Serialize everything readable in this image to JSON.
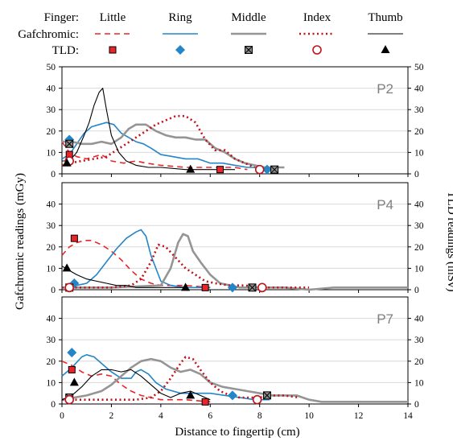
{
  "colors": {
    "little": "#e8262a",
    "ring": "#2485c8",
    "middle": "#959595",
    "index": "#c0131b",
    "thumb": "#000000",
    "panel_title": "#7f7f7f",
    "grid": "#d9d9d9"
  },
  "chart_data": {
    "type": "line",
    "legend": {
      "row_labels": [
        "Finger:",
        "Gafchromic:",
        "TLD:"
      ],
      "fingers": [
        "Little",
        "Ring",
        "Middle",
        "Index",
        "Thumb"
      ],
      "placement": "top"
    },
    "xlabel": "Distance to fingertip (cm)",
    "ylabel_left": "Gafchromic readings (mGy)",
    "ylabel_right": "TLD readings (mSv)",
    "xlim": [
      0,
      14
    ],
    "x_ticks": [
      0,
      2,
      4,
      6,
      8,
      10,
      12,
      14
    ],
    "ylim_left": [
      0,
      50
    ],
    "ylim_right": [
      0,
      50
    ],
    "y_ticks": [
      0,
      10,
      20,
      30,
      40,
      50
    ],
    "grid": true,
    "panels": [
      {
        "title": "P2",
        "series": [
          {
            "name": "Little",
            "x": [
              0,
              0.3,
              0.6,
              1.0,
              1.6,
              2.0,
              2.5,
              3.0,
              3.4,
              4.0,
              5.0,
              6.0,
              7.0,
              7.5
            ],
            "y": [
              15,
              10,
              8,
              7,
              9,
              6,
              5,
              6,
              5,
              4,
              3,
              3,
              3,
              2
            ]
          },
          {
            "name": "Ring",
            "x": [
              0,
              0.3,
              0.6,
              0.9,
              1.2,
              1.5,
              1.8,
              2.1,
              2.4,
              2.7,
              3.0,
              3.3,
              3.6,
              4.0,
              4.5,
              5.0,
              5.5,
              6.0,
              6.5,
              7.0,
              7.5,
              8.0,
              8.5
            ],
            "y": [
              7,
              9,
              14,
              19,
              22,
              23,
              24,
              23,
              19,
              17,
              15,
              14,
              12,
              9,
              8,
              7,
              7,
              5,
              5,
              4,
              3,
              3,
              3
            ]
          },
          {
            "name": "Middle",
            "x": [
              0,
              0.4,
              0.8,
              1.2,
              1.6,
              2.0,
              2.4,
              2.7,
              3.0,
              3.4,
              3.8,
              4.2,
              4.6,
              5.0,
              5.4,
              5.8,
              6.2,
              6.6,
              7.0,
              7.4,
              7.8,
              8.2,
              8.6,
              9.0
            ],
            "y": [
              15,
              15,
              14,
              14,
              15,
              14,
              17,
              21,
              23,
              23,
              20,
              18,
              17,
              17,
              16,
              16,
              12,
              10,
              7,
              5,
              4,
              3,
              3,
              3
            ]
          },
          {
            "name": "Index",
            "x": [
              0,
              0.3,
              0.8,
              1.3,
              1.8,
              2.2,
              2.6,
              3.0,
              3.4,
              3.8,
              4.2,
              4.6,
              5.0,
              5.4,
              5.8,
              6.2,
              6.6,
              7.0,
              7.4,
              7.8
            ],
            "y": [
              4,
              5,
              6,
              7,
              8,
              11,
              14,
              17,
              20,
              23,
              25,
              27,
              27,
              24,
              16,
              11,
              11,
              7,
              5,
              3
            ]
          },
          {
            "name": "Thumb",
            "x": [
              0,
              0.3,
              0.6,
              0.9,
              1.1,
              1.3,
              1.5,
              1.65,
              1.8,
              2.0,
              2.3,
              2.6,
              3.0,
              3.5,
              4.0,
              5.0,
              6.0,
              7.0
            ],
            "y": [
              6,
              6,
              10,
              18,
              24,
              32,
              38,
              40,
              30,
              18,
              10,
              6,
              4,
              3,
              3,
              2,
              2,
              2
            ]
          }
        ],
        "tld": [
          {
            "name": "Little",
            "x": [
              0.3,
              6.4
            ],
            "y": [
              9,
              2
            ]
          },
          {
            "name": "Ring",
            "x": [
              0.3,
              8.3
            ],
            "y": [
              16,
              2
            ]
          },
          {
            "name": "Middle",
            "x": [
              0.3,
              8.6
            ],
            "y": [
              14,
              2
            ]
          },
          {
            "name": "Index",
            "x": [
              0.3,
              8.0
            ],
            "y": [
              6,
              2
            ]
          },
          {
            "name": "Thumb",
            "x": [
              0.2,
              5.2
            ],
            "y": [
              5,
              2
            ]
          }
        ]
      },
      {
        "title": "P4",
        "series": [
          {
            "name": "Little",
            "x": [
              0,
              0.3,
              0.6,
              0.9,
              1.2,
              1.6,
              2.0,
              2.4,
              2.8,
              3.2,
              3.6,
              4.0,
              5.0,
              6.0
            ],
            "y": [
              16,
              20,
              22,
              23,
              23,
              21,
              18,
              14,
              9,
              5,
              3,
              2,
              2,
              1
            ]
          },
          {
            "name": "Ring",
            "x": [
              0,
              0.6,
              1.0,
              1.4,
              1.8,
              2.2,
              2.6,
              3.0,
              3.2,
              3.4,
              3.6,
              4.0,
              4.4,
              5.0,
              5.6,
              6.0
            ],
            "y": [
              1,
              2,
              3,
              7,
              13,
              19,
              24,
              27,
              28,
              25,
              16,
              4,
              2,
              1,
              1,
              1
            ]
          },
          {
            "name": "Middle",
            "x": [
              0,
              2.0,
              4.0,
              4.4,
              4.7,
              4.9,
              5.1,
              5.3,
              5.6,
              6.0,
              6.4,
              6.8,
              7.2,
              7.6,
              8.0,
              8.6,
              9.0,
              10.0,
              11.0,
              12.0,
              13.0,
              14.0
            ],
            "y": [
              1,
              1,
              2,
              10,
              22,
              26,
              25,
              18,
              13,
              7,
              3,
              2,
              1,
              1,
              1,
              1,
              1,
              0,
              1,
              1,
              1,
              1
            ]
          },
          {
            "name": "Index",
            "x": [
              0,
              1.0,
              2.0,
              2.8,
              3.2,
              3.6,
              3.9,
              4.2,
              4.6,
              5.0,
              5.4,
              5.8,
              6.2,
              6.8,
              7.4,
              8.0,
              9.0,
              10.0
            ],
            "y": [
              1,
              1,
              1,
              2,
              5,
              13,
              21,
              20,
              15,
              10,
              7,
              4,
              3,
              2,
              2,
              1,
              1,
              1
            ]
          },
          {
            "name": "Thumb",
            "x": [
              0,
              0.3,
              0.6,
              1.0,
              1.4,
              1.8,
              2.2,
              2.6,
              3.0,
              4.0,
              5.0
            ],
            "y": [
              11,
              9,
              7,
              5,
              4,
              3,
              2,
              2,
              1,
              1,
              1
            ]
          }
        ],
        "tld": [
          {
            "name": "Little",
            "x": [
              0.5,
              5.8
            ],
            "y": [
              24,
              1
            ]
          },
          {
            "name": "Ring",
            "x": [
              0.5,
              6.9
            ],
            "y": [
              3,
              1
            ]
          },
          {
            "name": "Middle",
            "x": [
              0.3,
              7.7
            ],
            "y": [
              1,
              1
            ]
          },
          {
            "name": "Index",
            "x": [
              0.3,
              8.1
            ],
            "y": [
              1,
              1
            ]
          },
          {
            "name": "Thumb",
            "x": [
              0.2,
              5.0
            ],
            "y": [
              10,
              1
            ]
          }
        ]
      },
      {
        "title": "P7",
        "series": [
          {
            "name": "Little",
            "x": [
              0,
              0.4,
              0.8,
              1.2,
              1.6,
              2.0,
              2.4,
              2.8,
              3.2,
              3.6,
              4.0,
              5.0,
              6.0
            ],
            "y": [
              20,
              18,
              15,
              13,
              14,
              13,
              9,
              6,
              4,
              3,
              2,
              2,
              1
            ]
          },
          {
            "name": "Ring",
            "x": [
              0,
              0.4,
              0.8,
              1.0,
              1.3,
              1.6,
              2.0,
              2.4,
              2.8,
              3.0,
              3.2,
              3.5,
              3.8,
              4.2,
              4.8,
              5.4,
              6.0,
              6.6,
              7.2,
              7.8,
              8.4
            ],
            "y": [
              13,
              17,
              22,
              23,
              22,
              19,
              15,
              12,
              12,
              15,
              16,
              14,
              10,
              7,
              5,
              5,
              5,
              4,
              3,
              2,
              2
            ]
          },
          {
            "name": "Middle",
            "x": [
              0,
              1.0,
              1.6,
              2.0,
              2.4,
              2.8,
              3.2,
              3.6,
              4.0,
              4.4,
              4.8,
              5.2,
              5.6,
              6.0,
              6.5,
              7.0,
              7.5,
              8.0,
              8.5,
              9.0,
              9.5,
              10.0,
              10.5,
              11.0,
              12.0,
              13.0,
              14.0
            ],
            "y": [
              2,
              4,
              6,
              9,
              13,
              17,
              20,
              21,
              20,
              17,
              15,
              16,
              14,
              10,
              8,
              7,
              6,
              5,
              4,
              4,
              4,
              2,
              1,
              1,
              1,
              1,
              1
            ]
          },
          {
            "name": "Index",
            "x": [
              0,
              1.0,
              2.0,
              3.0,
              3.6,
              4.0,
              4.4,
              4.8,
              5.0,
              5.3,
              5.6,
              6.0,
              6.4,
              6.8,
              7.2,
              7.6,
              8.0,
              8.4,
              9.0,
              9.6
            ],
            "y": [
              2,
              2,
              2,
              2,
              3,
              6,
              12,
              19,
              22,
              21,
              16,
              10,
              6,
              4,
              3,
              3,
              3,
              4,
              4,
              3
            ]
          },
          {
            "name": "Thumb",
            "x": [
              0,
              0.4,
              0.8,
              1.2,
              1.6,
              2.0,
              2.4,
              2.8,
              3.2,
              3.6,
              4.0,
              4.4,
              4.8,
              5.2,
              5.6,
              6.0
            ],
            "y": [
              2,
              4,
              8,
              13,
              16,
              16,
              15,
              16,
              13,
              9,
              5,
              3,
              5,
              6,
              4,
              2
            ]
          }
        ],
        "tld": [
          {
            "name": "Little",
            "x": [
              0.4,
              5.8
            ],
            "y": [
              16,
              1
            ]
          },
          {
            "name": "Ring",
            "x": [
              0.4,
              6.9
            ],
            "y": [
              24,
              4
            ]
          },
          {
            "name": "Middle",
            "x": [
              0.3,
              8.3
            ],
            "y": [
              3,
              4
            ]
          },
          {
            "name": "Index",
            "x": [
              0.3,
              7.9
            ],
            "y": [
              2,
              2
            ]
          },
          {
            "name": "Thumb",
            "x": [
              0.5,
              5.2
            ],
            "y": [
              10,
              4
            ]
          }
        ]
      }
    ]
  }
}
